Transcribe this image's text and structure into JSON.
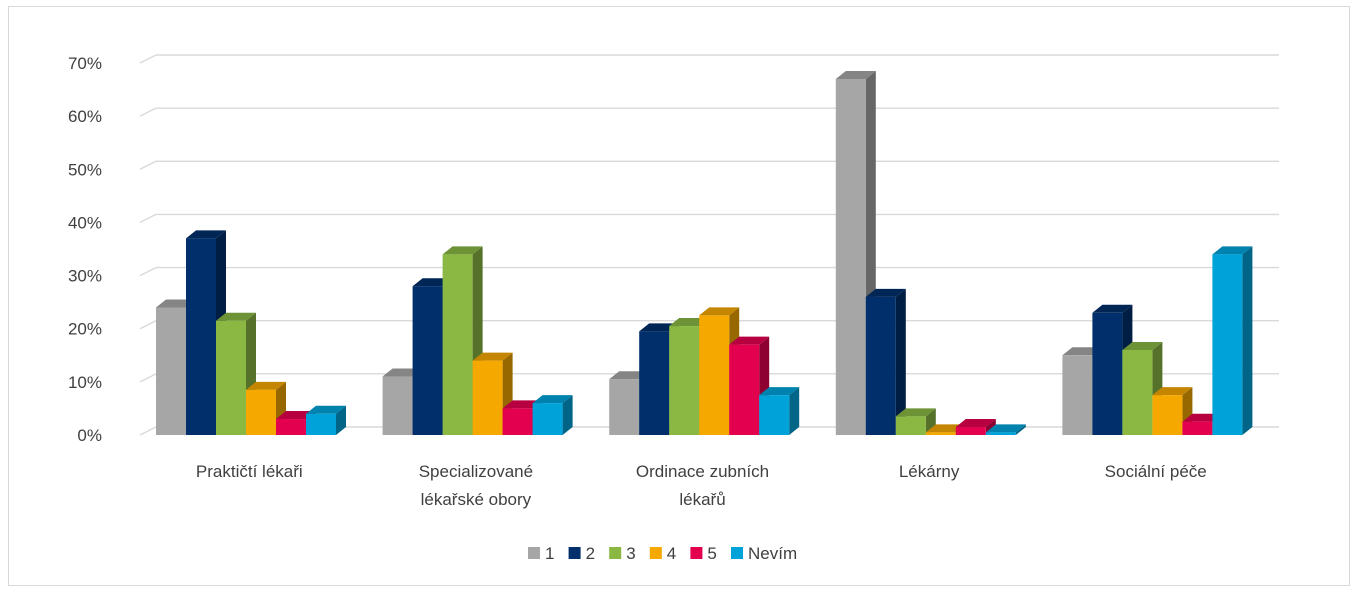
{
  "chart_data": {
    "type": "bar",
    "title": "",
    "xlabel": "",
    "ylabel": "",
    "ylim": [
      0,
      70
    ],
    "yticks": [
      0,
      10,
      20,
      30,
      40,
      50,
      60,
      70
    ],
    "ytick_labels": [
      "0%",
      "10%",
      "20%",
      "30%",
      "40%",
      "50%",
      "60%",
      "70%"
    ],
    "grid": true,
    "three_d": true,
    "legend_position": "bottom",
    "categories": [
      [
        "Praktičtí lékaři"
      ],
      [
        "Specializované",
        "lékařské obory"
      ],
      [
        "Ordinace zubních",
        "lékařů"
      ],
      [
        "Lékárny"
      ],
      [
        "Sociální péče"
      ]
    ],
    "series": [
      {
        "name": "1",
        "color": "#a6a6a6",
        "values": [
          24,
          11,
          10.5,
          67,
          15
        ]
      },
      {
        "name": "2",
        "color": "#002f6c",
        "values": [
          37,
          28,
          19.5,
          26,
          23
        ]
      },
      {
        "name": "3",
        "color": "#8ab843",
        "values": [
          21.5,
          34,
          20.5,
          3.5,
          16
        ]
      },
      {
        "name": "4",
        "color": "#f5a800",
        "values": [
          8.5,
          14,
          22.5,
          0.5,
          7.5
        ]
      },
      {
        "name": "5",
        "color": "#e3004f",
        "values": [
          3,
          5,
          17,
          1.5,
          2.5
        ]
      },
      {
        "name": "Nevím",
        "color": "#00a3d9",
        "values": [
          4,
          6,
          7.5,
          0.5,
          34
        ]
      }
    ]
  }
}
